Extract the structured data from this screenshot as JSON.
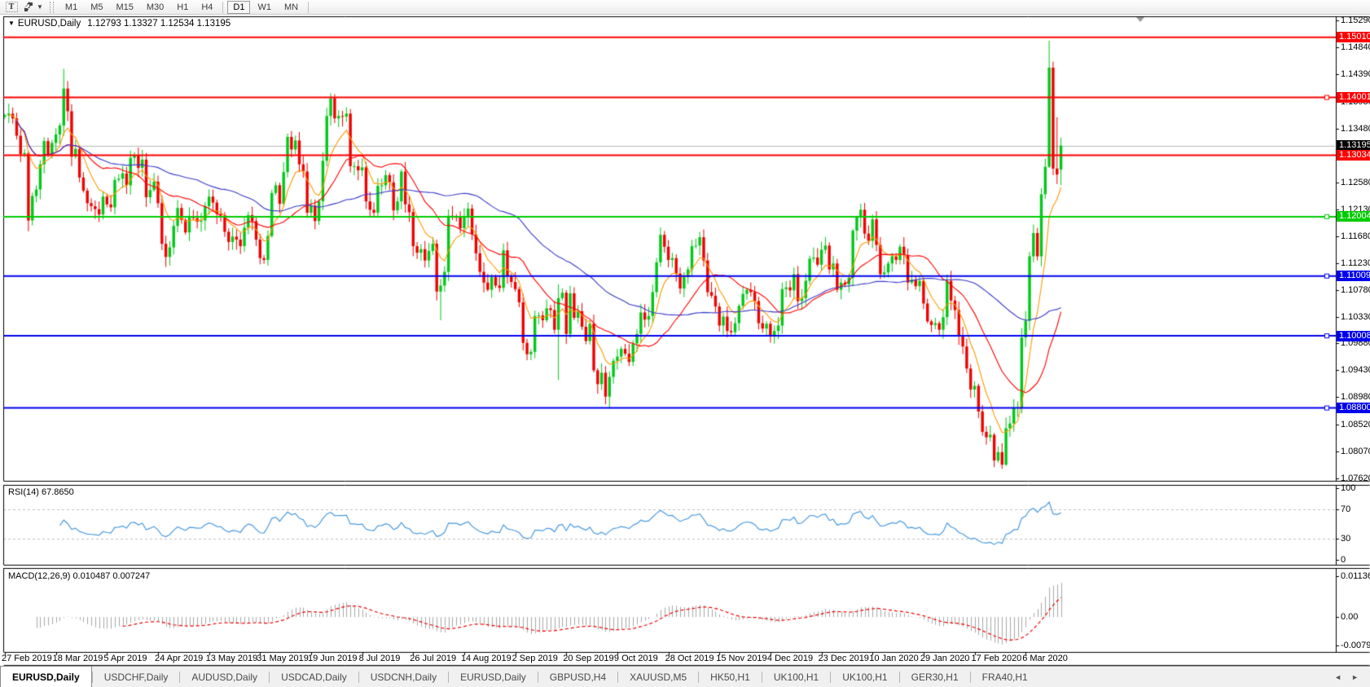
{
  "toolbar": {
    "text_tool": "T",
    "timeframes": [
      "M1",
      "M5",
      "M15",
      "M30",
      "H1",
      "H4",
      "D1",
      "W1",
      "MN"
    ],
    "active_timeframe": "D1"
  },
  "chart_header": {
    "collapse_icon": "▼",
    "symbol": "EURUSD,Daily",
    "open": "1.12793",
    "high": "1.13327",
    "low": "1.12534",
    "close": "1.13195"
  },
  "price_axis": {
    "ticks": [
      "1.15290",
      "1.14840",
      "1.14390",
      "1.13930",
      "1.13480",
      "1.12580",
      "1.12130",
      "1.11680",
      "1.11230",
      "1.10780",
      "1.10330",
      "1.09880",
      "1.09430",
      "1.08980",
      "1.08520",
      "1.08070",
      "1.07620"
    ],
    "badges": [
      {
        "text": "1.15010",
        "price": 1.1501,
        "bg": "#ff0000"
      },
      {
        "text": "1.14001",
        "price": 1.14001,
        "bg": "#ff0000"
      },
      {
        "text": "1.13195",
        "price": 1.13195,
        "bg": "#000000"
      },
      {
        "text": "1.13034",
        "price": 1.13034,
        "bg": "#ff0000"
      },
      {
        "text": "1.12004",
        "price": 1.12004,
        "bg": "#00cc00"
      },
      {
        "text": "1.11009",
        "price": 1.11009,
        "bg": "#0000ee"
      },
      {
        "text": "1.10008",
        "price": 1.10008,
        "bg": "#0000ee"
      },
      {
        "text": "1.08800",
        "price": 1.088,
        "bg": "#0000ee"
      }
    ]
  },
  "rsi_pane": {
    "label": "RSI(14) 67.8650",
    "axis": [
      "100",
      "70",
      "30",
      "0"
    ]
  },
  "macd_pane": {
    "label": "MACD(12,26,9) 0.010487 0.007247",
    "axis": [
      "0.011362",
      "0.00",
      "-0.0079"
    ]
  },
  "date_axis": [
    "27 Feb 2019",
    "18 Mar 2019",
    "5 Apr 2019",
    "24 Apr 2019",
    "13 May 2019",
    "31 May 2019",
    "19 Jun 2019",
    "8 Jul 2019",
    "26 Jul 2019",
    "14 Aug 2019",
    "2 Sep 2019",
    "20 Sep 2019",
    "9 Oct 2019",
    "28 Oct 2019",
    "15 Nov 2019",
    "4 Dec 2019",
    "23 Dec 2019",
    "10 Jan 2020",
    "29 Jan 2020",
    "17 Feb 2020",
    "6 Mar 2020"
  ],
  "tab_bar": {
    "tabs": [
      "EURUSD,Daily",
      "USDCHF,Daily",
      "AUDUSD,Daily",
      "USDCAD,Daily",
      "USDCNH,Daily",
      "EURUSD,Daily",
      "GBPUSD,H4",
      "XAUUSD,M5",
      "HK50,H1",
      "UK100,H1",
      "UK100,H1",
      "GER30,H1",
      "FRA40,H1"
    ],
    "active_index": 0,
    "scroll_left": "◄",
    "scroll_right": "►"
  },
  "chart_data": {
    "type": "candlestick",
    "symbol": "EURUSD",
    "timeframe": "Daily",
    "current_bar": {
      "open": 1.12793,
      "high": 1.13327,
      "low": 1.12534,
      "close": 1.13195
    },
    "price_axis_range": [
      1.0758,
      1.1536
    ],
    "current_price": 1.13195,
    "horizontal_lines": [
      {
        "price": 1.1501,
        "color": "#ff0000"
      },
      {
        "price": 1.14001,
        "color": "#ff0000"
      },
      {
        "price": 1.13034,
        "color": "#ff0000"
      },
      {
        "price": 1.12004,
        "color": "#00cc00"
      },
      {
        "price": 1.11009,
        "color": "#0000ee"
      },
      {
        "price": 1.10008,
        "color": "#0000ee"
      },
      {
        "price": 1.088,
        "color": "#0000ee"
      }
    ],
    "indicators": {
      "rsi": {
        "period": 14,
        "current": 67.865,
        "levels": [
          70,
          30
        ],
        "range": [
          0,
          100
        ]
      },
      "macd": {
        "fast": 12,
        "slow": 26,
        "signal": 9,
        "current": 0.010487,
        "signal_current": 0.007247,
        "scale_max": 0.011362,
        "scale_min": -0.0079
      },
      "moving_averages": [
        {
          "type": "ema",
          "period": 8,
          "color": "#ff9900"
        },
        {
          "type": "sma",
          "period": 20,
          "color": "#ff0000"
        },
        {
          "type": "sma",
          "period": 50,
          "color": "#3a3ac8"
        }
      ]
    },
    "up_color": "#00c818",
    "down_color": "#f00000",
    "first_open": 1.1368,
    "closes": [
      1.137,
      1.1373,
      1.1365,
      1.1336,
      1.1305,
      1.1307,
      1.1194,
      1.1235,
      1.1246,
      1.1288,
      1.1327,
      1.1305,
      1.1324,
      1.1338,
      1.1353,
      1.1415,
      1.1377,
      1.1301,
      1.1314,
      1.1266,
      1.1244,
      1.1223,
      1.1218,
      1.1213,
      1.1204,
      1.1234,
      1.1221,
      1.1216,
      1.1262,
      1.1264,
      1.1273,
      1.1253,
      1.1299,
      1.1304,
      1.1282,
      1.1296,
      1.1233,
      1.1245,
      1.1259,
      1.1223,
      1.1155,
      1.1133,
      1.1149,
      1.1185,
      1.1215,
      1.1195,
      1.1174,
      1.12,
      1.1198,
      1.1192,
      1.1194,
      1.1218,
      1.1234,
      1.1224,
      1.1205,
      1.1203,
      1.1175,
      1.1158,
      1.1167,
      1.1162,
      1.1151,
      1.1182,
      1.1203,
      1.1193,
      1.1162,
      1.1131,
      1.1128,
      1.1168,
      1.124,
      1.1253,
      1.1222,
      1.1275,
      1.1334,
      1.1313,
      1.1328,
      1.1288,
      1.1276,
      1.1207,
      1.1219,
      1.1193,
      1.1226,
      1.1294,
      1.1369,
      1.1399,
      1.1365,
      1.1369,
      1.1368,
      1.1373,
      1.1285,
      1.1285,
      1.1278,
      1.1283,
      1.1226,
      1.1212,
      1.1207,
      1.1252,
      1.1253,
      1.127,
      1.1258,
      1.1211,
      1.1226,
      1.1276,
      1.1221,
      1.1208,
      1.1151,
      1.114,
      1.1146,
      1.1127,
      1.1143,
      1.1155,
      1.1075,
      1.1085,
      1.1108,
      1.1202,
      1.12,
      1.1199,
      1.1181,
      1.1199,
      1.1214,
      1.1171,
      1.1139,
      1.1108,
      1.109,
      1.1078,
      1.1099,
      1.1085,
      1.1081,
      1.1144,
      1.1101,
      1.1091,
      1.1079,
      1.1057,
      1.0989,
      1.097,
      1.0974,
      1.1034,
      1.1035,
      1.1027,
      1.1047,
      1.1044,
      1.1011,
      1.1064,
      1.1073,
      1.1004,
      1.1072,
      1.1031,
      1.1042,
      1.1016,
      1.0992,
      1.1021,
      1.0943,
      1.092,
      1.0939,
      1.0899,
      1.0932,
      1.0959,
      1.0966,
      1.0979,
      1.0971,
      1.0957,
      1.0988,
      1.1004,
      1.104,
      1.1028,
      1.1034,
      1.1074,
      1.1124,
      1.117,
      1.115,
      1.1128,
      1.1131,
      1.1105,
      1.108,
      1.1099,
      1.1112,
      1.1151,
      1.1152,
      1.1166,
      1.1127,
      1.1074,
      1.1068,
      1.105,
      1.1018,
      1.1033,
      1.1009,
      1.1007,
      1.1022,
      1.1051,
      1.1071,
      1.1078,
      1.1074,
      1.1059,
      1.1022,
      1.1013,
      1.1021,
      1.1,
      1.1009,
      1.1018,
      1.1079,
      1.1082,
      1.1077,
      1.1104,
      1.1059,
      1.1064,
      1.1093,
      1.113,
      1.1132,
      1.112,
      1.1145,
      1.1152,
      1.1112,
      1.1122,
      1.1078,
      1.109,
      1.1087,
      1.1098,
      1.1177,
      1.1199,
      1.1212,
      1.1172,
      1.116,
      1.1196,
      1.1153,
      1.1104,
      1.1107,
      1.1122,
      1.1134,
      1.1128,
      1.115,
      1.1136,
      1.109,
      1.1095,
      1.1084,
      1.1093,
      1.1055,
      1.1025,
      1.1019,
      1.1022,
      1.1011,
      1.1032,
      1.1093,
      1.106,
      1.1044,
      1.1,
      1.0983,
      1.0946,
      1.0911,
      1.0917,
      1.0874,
      1.084,
      1.0831,
      1.0835,
      1.0792,
      1.0806,
      1.0785,
      1.0846,
      1.0854,
      1.0881,
      1.0881,
      1.0998,
      1.1026,
      1.1134,
      1.1173,
      1.1134,
      1.1238,
      1.1284,
      1.145,
      1.1281,
      1.1271,
      1.13195
    ],
    "overrides": {
      "6": [
        1.1307,
        1.131,
        1.1176,
        1.1194
      ],
      "15": [
        1.1353,
        1.1448,
        1.1336,
        1.1415
      ],
      "110": [
        1.1155,
        1.1162,
        1.106,
        1.1075
      ],
      "111": [
        1.1075,
        1.1096,
        1.1027,
        1.1085
      ],
      "141": [
        1.1011,
        1.1087,
        1.0927,
        1.1064
      ],
      "154": [
        1.0899,
        1.0941,
        1.0879,
        1.0932
      ],
      "254": [
        1.0806,
        1.0821,
        1.0778,
        1.0785
      ],
      "255": [
        1.0785,
        1.0864,
        1.0783,
        1.0846
      ],
      "266": [
        1.1284,
        1.1495,
        1.1282,
        1.145
      ],
      "267": [
        1.145,
        1.146,
        1.127,
        1.1281
      ],
      "268": [
        1.1281,
        1.1367,
        1.1255,
        1.1271
      ],
      "269": [
        1.12793,
        1.13327,
        1.12534,
        1.13195
      ]
    }
  }
}
